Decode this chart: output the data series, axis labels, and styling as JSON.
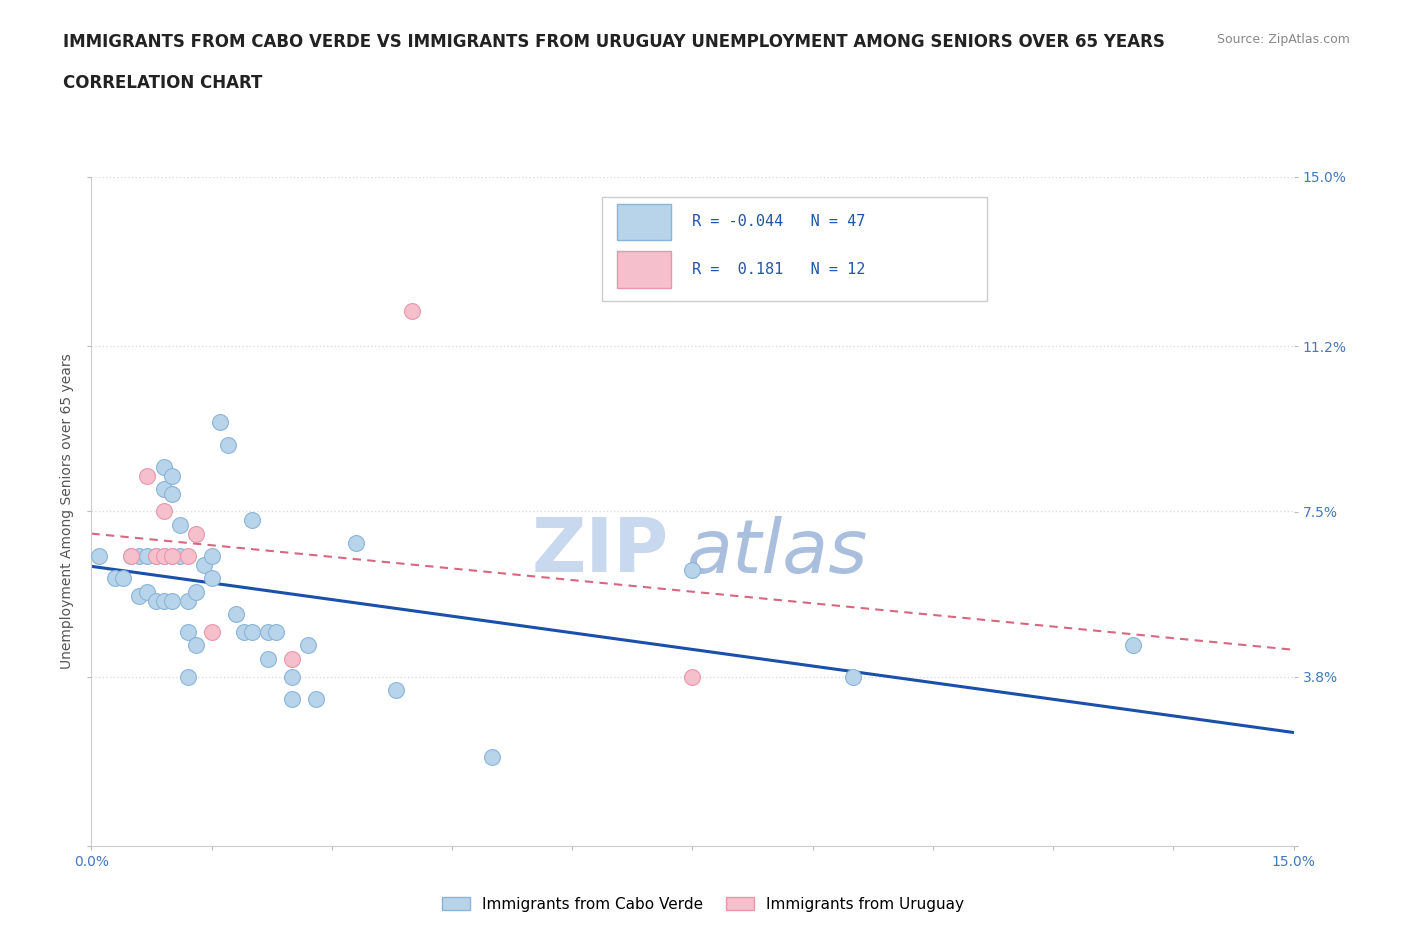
{
  "title_line1": "IMMIGRANTS FROM CABO VERDE VS IMMIGRANTS FROM URUGUAY UNEMPLOYMENT AMONG SENIORS OVER 65 YEARS",
  "title_line2": "CORRELATION CHART",
  "source": "Source: ZipAtlas.com",
  "ylabel": "Unemployment Among Seniors over 65 years",
  "xlim": [
    0.0,
    0.15
  ],
  "ylim": [
    0.0,
    0.15
  ],
  "xticks": [
    0.0,
    0.015,
    0.03,
    0.045,
    0.06,
    0.075,
    0.09,
    0.105,
    0.12,
    0.135,
    0.15
  ],
  "xticklabels": [
    "0.0%",
    "",
    "",
    "",
    "",
    "",
    "",
    "",
    "",
    "",
    "15.0%"
  ],
  "ytick_positions": [
    0.0,
    0.038,
    0.075,
    0.112,
    0.15
  ],
  "ytick_labels_right": [
    "",
    "3.8%",
    "7.5%",
    "11.2%",
    "15.0%"
  ],
  "watermark_zip": "ZIP",
  "watermark_atlas": "atlas",
  "cabo_verde_color": "#b8d4ea",
  "cabo_verde_edge": "#8ab4d8",
  "uruguay_color": "#f5c0cc",
  "uruguay_edge": "#e896aa",
  "trend_cabo_verde_color": "#1a4faa",
  "trend_uruguay_color": "#cc3355",
  "R_cabo_verde": -0.044,
  "N_cabo_verde": 47,
  "R_uruguay": 0.181,
  "N_uruguay": 12,
  "cabo_verde_x": [
    0.001,
    0.003,
    0.004,
    0.005,
    0.006,
    0.006,
    0.007,
    0.007,
    0.008,
    0.008,
    0.009,
    0.009,
    0.009,
    0.009,
    0.01,
    0.01,
    0.01,
    0.01,
    0.011,
    0.011,
    0.012,
    0.012,
    0.012,
    0.013,
    0.013,
    0.014,
    0.015,
    0.015,
    0.016,
    0.017,
    0.018,
    0.019,
    0.02,
    0.02,
    0.022,
    0.022,
    0.023,
    0.025,
    0.025,
    0.027,
    0.028,
    0.033,
    0.038,
    0.05,
    0.075,
    0.095,
    0.13
  ],
  "cabo_verde_y": [
    0.065,
    0.06,
    0.06,
    0.065,
    0.065,
    0.056,
    0.065,
    0.057,
    0.065,
    0.055,
    0.085,
    0.08,
    0.065,
    0.055,
    0.083,
    0.079,
    0.065,
    0.055,
    0.072,
    0.065,
    0.055,
    0.048,
    0.038,
    0.057,
    0.045,
    0.063,
    0.065,
    0.06,
    0.095,
    0.09,
    0.052,
    0.048,
    0.073,
    0.048,
    0.048,
    0.042,
    0.048,
    0.038,
    0.033,
    0.045,
    0.033,
    0.068,
    0.035,
    0.02,
    0.062,
    0.038,
    0.045
  ],
  "uruguay_x": [
    0.005,
    0.007,
    0.008,
    0.009,
    0.009,
    0.01,
    0.012,
    0.013,
    0.015,
    0.025,
    0.04,
    0.075
  ],
  "uruguay_y": [
    0.065,
    0.083,
    0.065,
    0.065,
    0.075,
    0.065,
    0.065,
    0.07,
    0.048,
    0.042,
    0.12,
    0.038
  ],
  "grid_color": "#dddddd",
  "background_color": "#ffffff",
  "title_fontsize": 12,
  "axis_label_fontsize": 10,
  "tick_fontsize": 10,
  "legend_fontsize": 11
}
